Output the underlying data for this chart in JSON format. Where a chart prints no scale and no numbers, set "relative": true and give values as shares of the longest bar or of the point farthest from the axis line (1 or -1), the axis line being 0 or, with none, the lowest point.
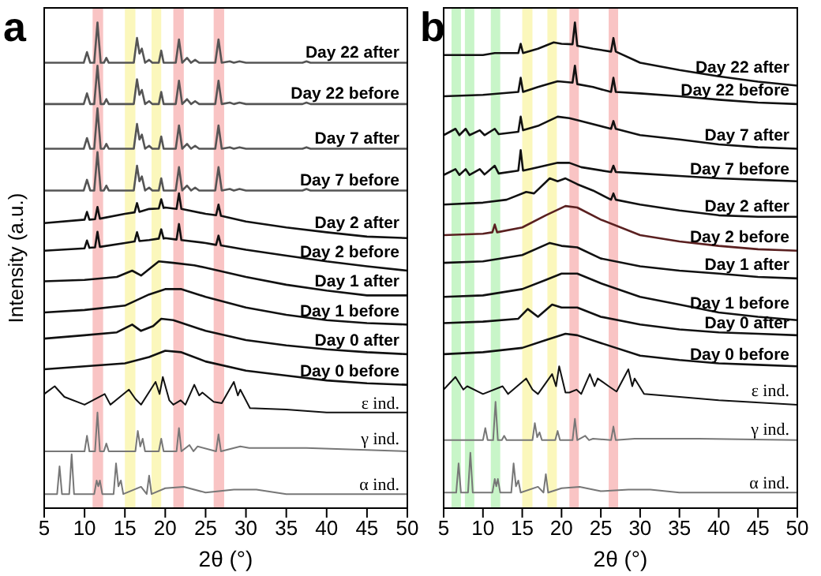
{
  "chart_data": [
    {
      "type": "line",
      "title": "a",
      "xlabel": "2θ (°)",
      "ylabel": "Intensity (a.u.)",
      "relative": true,
      "xlim": [
        5,
        50
      ],
      "xticks": [
        5,
        10,
        15,
        20,
        25,
        30,
        35,
        40,
        45,
        50
      ],
      "tick_labels": "x",
      "bands": [
        {
          "axis": "x",
          "from": 11,
          "to": 12.3,
          "color": "#f9c4c4"
        },
        {
          "axis": "x",
          "from": 15,
          "to": 16.3,
          "color": "#fbf7bc"
        },
        {
          "axis": "x",
          "from": 18.3,
          "to": 19.5,
          "color": "#fbf7bc"
        },
        {
          "axis": "x",
          "from": 21,
          "to": 22.3,
          "color": "#f9c4c4"
        },
        {
          "axis": "x",
          "from": 26,
          "to": 27.3,
          "color": "#f9c4c4"
        }
      ],
      "series": [
        {
          "name": "Day 22 after",
          "color": "#555555",
          "x": [
            5,
            9.9,
            10.3,
            10.7,
            11.2,
            11.6,
            12,
            12.4,
            12.7,
            13,
            16.1,
            16.5,
            16.8,
            17.1,
            17.5,
            18,
            18.4,
            19.2,
            19.5,
            19.8,
            21.3,
            21.7,
            22.1,
            22.7,
            23.2,
            23.7,
            24.2,
            26.2,
            26.6,
            27,
            28,
            28.5,
            29.2,
            30,
            37,
            37.5,
            38,
            50
          ],
          "values": [
            0.917,
            0.917,
            0.939,
            0.917,
            0.917,
            1.0,
            0.917,
            0.917,
            0.927,
            0.917,
            0.917,
            0.968,
            0.936,
            0.946,
            0.917,
            0.923,
            0.917,
            0.917,
            0.942,
            0.917,
            0.917,
            0.965,
            0.917,
            0.927,
            0.917,
            0.923,
            0.917,
            0.917,
            0.965,
            0.917,
            0.92,
            0.917,
            0.92,
            0.917,
            0.917,
            0.92,
            0.917,
            0.917
          ]
        },
        {
          "name": "Day 22 before",
          "color": "#555555",
          "x": [
            5,
            9.9,
            10.3,
            10.7,
            11.2,
            11.6,
            12,
            12.4,
            12.7,
            13,
            16.1,
            16.5,
            16.8,
            17.1,
            17.5,
            18,
            18.4,
            19.2,
            19.5,
            19.8,
            21.3,
            21.7,
            22.1,
            22.7,
            23.2,
            23.7,
            24.2,
            26.2,
            26.6,
            27,
            28,
            28.5,
            29.2,
            30,
            37,
            37.5,
            38,
            50
          ],
          "values": [
            0.832,
            0.832,
            0.854,
            0.832,
            0.832,
            0.911,
            0.832,
            0.832,
            0.842,
            0.832,
            0.832,
            0.883,
            0.851,
            0.861,
            0.832,
            0.838,
            0.832,
            0.832,
            0.857,
            0.832,
            0.832,
            0.88,
            0.832,
            0.842,
            0.832,
            0.838,
            0.832,
            0.832,
            0.88,
            0.832,
            0.835,
            0.832,
            0.835,
            0.832,
            0.832,
            0.835,
            0.832,
            0.832
          ]
        },
        {
          "name": "Day 7 after",
          "color": "#555555",
          "x": [
            5,
            9.9,
            10.3,
            10.7,
            11.2,
            11.6,
            12,
            12.4,
            12.7,
            13,
            16.1,
            16.5,
            16.8,
            17.1,
            17.5,
            18,
            18.4,
            19.2,
            19.5,
            19.8,
            21.3,
            21.7,
            22.1,
            22.7,
            23.2,
            23.7,
            24.2,
            26.2,
            26.6,
            27,
            28,
            28.5,
            29.2,
            30,
            37,
            37.5,
            38,
            50
          ],
          "values": [
            0.74,
            0.74,
            0.762,
            0.74,
            0.74,
            0.823,
            0.74,
            0.74,
            0.75,
            0.74,
            0.74,
            0.791,
            0.759,
            0.769,
            0.74,
            0.746,
            0.74,
            0.74,
            0.765,
            0.74,
            0.74,
            0.788,
            0.74,
            0.75,
            0.74,
            0.746,
            0.74,
            0.74,
            0.788,
            0.74,
            0.743,
            0.74,
            0.743,
            0.74,
            0.74,
            0.743,
            0.74,
            0.74
          ]
        },
        {
          "name": "Day 7 before",
          "color": "#555555",
          "x": [
            5,
            9.9,
            10.3,
            10.7,
            11.2,
            11.6,
            12,
            12.4,
            12.7,
            13,
            16.1,
            16.5,
            16.8,
            17.1,
            17.5,
            18,
            18.4,
            19.2,
            19.5,
            19.8,
            21.3,
            21.7,
            22.1,
            22.7,
            23.2,
            23.7,
            24.2,
            26.2,
            26.6,
            27,
            28,
            28.5,
            29.2,
            30,
            37,
            37.5,
            38,
            50
          ],
          "values": [
            0.654,
            0.654,
            0.676,
            0.654,
            0.654,
            0.733,
            0.654,
            0.654,
            0.664,
            0.654,
            0.654,
            0.705,
            0.673,
            0.683,
            0.654,
            0.66,
            0.654,
            0.654,
            0.679,
            0.654,
            0.654,
            0.702,
            0.654,
            0.664,
            0.654,
            0.66,
            0.654,
            0.654,
            0.702,
            0.654,
            0.657,
            0.654,
            0.657,
            0.654,
            0.654,
            0.657,
            0.654,
            0.654
          ]
        },
        {
          "name": "Day 2 after",
          "color": "#111111",
          "x": [
            5,
            10,
            10.3,
            10.6,
            11.3,
            11.6,
            11.9,
            15,
            16.2,
            16.5,
            16.8,
            18,
            19.2,
            19.5,
            19.8,
            20,
            21.4,
            21.7,
            22,
            25,
            26.3,
            26.6,
            26.9,
            30,
            35,
            40,
            45,
            50
          ],
          "values": [
            0.587,
            0.594,
            0.61,
            0.594,
            0.595,
            0.62,
            0.596,
            0.606,
            0.609,
            0.628,
            0.61,
            0.616,
            0.617,
            0.636,
            0.618,
            0.619,
            0.616,
            0.648,
            0.616,
            0.606,
            0.603,
            0.625,
            0.602,
            0.59,
            0.578,
            0.568,
            0.559,
            0.556
          ]
        },
        {
          "name": "Day 2 before",
          "color": "#111111",
          "x": [
            5,
            10,
            10.3,
            10.6,
            11.3,
            11.6,
            11.9,
            15,
            16.2,
            16.5,
            16.8,
            18,
            19.2,
            19.5,
            19.8,
            20,
            21.4,
            21.7,
            22,
            25,
            26.3,
            26.6,
            26.9,
            30,
            35,
            40,
            45,
            50
          ],
          "values": [
            0.53,
            0.535,
            0.551,
            0.536,
            0.537,
            0.569,
            0.538,
            0.546,
            0.549,
            0.568,
            0.55,
            0.552,
            0.555,
            0.574,
            0.555,
            0.556,
            0.553,
            0.585,
            0.552,
            0.546,
            0.542,
            0.561,
            0.541,
            0.532,
            0.52,
            0.508,
            0.498,
            0.489
          ]
        },
        {
          "name": "Day 1 after",
          "color": "#111111",
          "x": [
            5,
            10,
            14,
            15.9,
            17,
            19.2,
            21,
            23.6,
            25,
            30,
            35,
            40,
            45,
            50
          ],
          "values": [
            0.467,
            0.47,
            0.476,
            0.489,
            0.479,
            0.508,
            0.505,
            0.5,
            0.495,
            0.476,
            0.46,
            0.448,
            0.438,
            0.438
          ]
        },
        {
          "name": "Day 1 before",
          "color": "#111111",
          "x": [
            5,
            10,
            15,
            18,
            20,
            22,
            25,
            30,
            35,
            40,
            45,
            50
          ],
          "values": [
            0.403,
            0.408,
            0.417,
            0.44,
            0.451,
            0.451,
            0.435,
            0.413,
            0.398,
            0.387,
            0.381,
            0.378
          ]
        },
        {
          "name": "Day 0 after",
          "color": "#111111",
          "x": [
            5,
            10,
            14,
            15.9,
            17,
            18.5,
            19.5,
            21,
            25,
            30,
            35,
            40,
            45,
            50
          ],
          "values": [
            0.349,
            0.356,
            0.362,
            0.378,
            0.365,
            0.375,
            0.39,
            0.387,
            0.365,
            0.346,
            0.335,
            0.327,
            0.321,
            0.317
          ]
        },
        {
          "name": "Day 0 before",
          "color": "#111111",
          "x": [
            5,
            10,
            15,
            18,
            20,
            22,
            25,
            30,
            35,
            40,
            45,
            50
          ],
          "values": [
            0.286,
            0.292,
            0.298,
            0.311,
            0.324,
            0.321,
            0.302,
            0.283,
            0.273,
            0.263,
            0.257,
            0.254
          ]
        },
        {
          "name": "ε ind.",
          "color": "#111111",
          "x": [
            5,
            6.3,
            7.5,
            10,
            12.5,
            13.2,
            15.5,
            16.3,
            17,
            18.8,
            19.3,
            19.7,
            20.5,
            21,
            21.9,
            22.5,
            23.6,
            24.2,
            24.6,
            26,
            27,
            28.5,
            29,
            29.3,
            30.5,
            35,
            40,
            50
          ],
          "values": [
            0.235,
            0.251,
            0.229,
            0.213,
            0.235,
            0.213,
            0.244,
            0.225,
            0.213,
            0.26,
            0.235,
            0.27,
            0.222,
            0.213,
            0.222,
            0.213,
            0.254,
            0.232,
            0.238,
            0.219,
            0.216,
            0.26,
            0.232,
            0.244,
            0.206,
            0.203,
            0.197,
            0.197
          ]
        },
        {
          "name": "γ ind.",
          "color": "#777777",
          "x": [
            5,
            10,
            10.3,
            10.6,
            11.3,
            11.6,
            11.9,
            12.4,
            12.7,
            13,
            16.3,
            16.6,
            16.9,
            17.2,
            17.5,
            19.2,
            19.5,
            19.8,
            21.4,
            21.7,
            22,
            23,
            23.5,
            24,
            26.3,
            26.6,
            26.9,
            29.3,
            30.4,
            37.5,
            50
          ],
          "values": [
            0.117,
            0.117,
            0.149,
            0.117,
            0.117,
            0.197,
            0.117,
            0.117,
            0.133,
            0.117,
            0.117,
            0.159,
            0.127,
            0.143,
            0.117,
            0.117,
            0.143,
            0.117,
            0.117,
            0.165,
            0.117,
            0.13,
            0.117,
            0.127,
            0.117,
            0.152,
            0.117,
            0.127,
            0.124,
            0.124,
            0.117
          ]
        },
        {
          "name": "α ind.",
          "color": "#777777",
          "x": [
            5,
            6.6,
            6.9,
            7.2,
            8.1,
            8.4,
            8.7,
            11.2,
            11.5,
            11.7,
            11.9,
            12.2,
            13.6,
            13.9,
            14.2,
            14.5,
            14.8,
            17,
            17.7,
            18,
            18.3,
            20,
            22.3,
            25,
            28.5,
            31.3,
            35,
            50
          ],
          "values": [
            0.029,
            0.029,
            0.086,
            0.029,
            0.029,
            0.111,
            0.029,
            0.029,
            0.057,
            0.045,
            0.057,
            0.029,
            0.029,
            0.092,
            0.045,
            0.057,
            0.029,
            0.044,
            0.029,
            0.067,
            0.029,
            0.041,
            0.044,
            0.032,
            0.038,
            0.038,
            0.029,
            0.029
          ]
        }
      ]
    },
    {
      "type": "line",
      "title": "b",
      "xlabel": "2θ (°)",
      "relative": true,
      "xlim": [
        5,
        50
      ],
      "xticks": [
        5,
        10,
        15,
        20,
        25,
        30,
        35,
        40,
        45,
        50
      ],
      "tick_labels": "x",
      "bands": [
        {
          "axis": "x",
          "from": 6,
          "to": 7.2,
          "color": "#c8f5c8"
        },
        {
          "axis": "x",
          "from": 7.7,
          "to": 8.9,
          "color": "#c8f5c8"
        },
        {
          "axis": "x",
          "from": 11,
          "to": 12.2,
          "color": "#c8f5c8"
        },
        {
          "axis": "x",
          "from": 15,
          "to": 16.3,
          "color": "#fbf7bc"
        },
        {
          "axis": "x",
          "from": 18.2,
          "to": 19.4,
          "color": "#fbf7bc"
        },
        {
          "axis": "x",
          "from": 21,
          "to": 22.2,
          "color": "#f9c4c4"
        },
        {
          "axis": "x",
          "from": 26,
          "to": 27.2,
          "color": "#f9c4c4"
        }
      ],
      "series": [
        {
          "name": "Day 22 after",
          "color": "#111111",
          "x": [
            5,
            10,
            11.5,
            14.5,
            14.8,
            15.1,
            17,
            19,
            20,
            21.4,
            21.7,
            22,
            24,
            26.3,
            26.6,
            26.9,
            30,
            35,
            40,
            45,
            50
          ],
          "values": [
            0.933,
            0.933,
            0.937,
            0.937,
            0.956,
            0.937,
            0.946,
            0.959,
            0.956,
            0.955,
            1.0,
            0.952,
            0.946,
            0.94,
            0.968,
            0.94,
            0.917,
            0.902,
            0.889,
            0.878,
            0.87
          ]
        },
        {
          "name": "Day 22 before",
          "color": "#111111",
          "x": [
            5,
            10,
            14.5,
            14.8,
            15.1,
            17,
            19.5,
            21.4,
            21.7,
            22,
            24,
            26.3,
            26.6,
            26.9,
            30,
            35,
            40,
            45,
            50
          ],
          "values": [
            0.848,
            0.851,
            0.857,
            0.886,
            0.857,
            0.867,
            0.879,
            0.876,
            0.911,
            0.873,
            0.867,
            0.857,
            0.886,
            0.857,
            0.854,
            0.848,
            0.841,
            0.835,
            0.832
          ]
        },
        {
          "name": "Day 7 after",
          "color": "#111111",
          "x": [
            5,
            6.5,
            7,
            7.8,
            8.3,
            9.6,
            10.2,
            11.5,
            12,
            14.5,
            14.8,
            15.1,
            17,
            19.5,
            21,
            22.5,
            26.3,
            26.6,
            26.9,
            30,
            35,
            40,
            45,
            50
          ],
          "values": [
            0.768,
            0.781,
            0.768,
            0.781,
            0.768,
            0.778,
            0.768,
            0.781,
            0.77,
            0.775,
            0.806,
            0.778,
            0.787,
            0.806,
            0.803,
            0.797,
            0.781,
            0.797,
            0.781,
            0.768,
            0.759,
            0.749,
            0.743,
            0.74
          ]
        },
        {
          "name": "Day 7 before",
          "color": "#111111",
          "x": [
            5,
            6.5,
            7,
            7.8,
            8.3,
            9.6,
            10.2,
            11.5,
            12,
            14.5,
            14.8,
            15.1,
            17,
            19.5,
            21,
            22.5,
            26.3,
            26.6,
            26.9,
            30,
            35,
            40,
            45,
            50
          ],
          "values": [
            0.686,
            0.698,
            0.686,
            0.698,
            0.686,
            0.698,
            0.687,
            0.705,
            0.689,
            0.695,
            0.737,
            0.695,
            0.702,
            0.711,
            0.711,
            0.702,
            0.692,
            0.705,
            0.692,
            0.689,
            0.684,
            0.679,
            0.676,
            0.673
          ]
        },
        {
          "name": "Day 2 after",
          "color": "#111111",
          "x": [
            5,
            10,
            13,
            15.5,
            16.5,
            18.5,
            19.5,
            20.5,
            22,
            24,
            26.3,
            26.6,
            26.9,
            30,
            35,
            40,
            45,
            50
          ],
          "values": [
            0.625,
            0.629,
            0.635,
            0.651,
            0.648,
            0.679,
            0.673,
            0.679,
            0.667,
            0.654,
            0.635,
            0.648,
            0.635,
            0.625,
            0.613,
            0.603,
            0.6,
            0.6
          ]
        },
        {
          "name": "Day 2 before",
          "color": "#5a2020",
          "x": [
            5,
            10,
            11.2,
            11.5,
            11.8,
            15,
            18,
            20.5,
            22,
            25,
            30,
            35,
            40,
            45,
            50
          ],
          "values": [
            0.562,
            0.565,
            0.568,
            0.584,
            0.568,
            0.578,
            0.603,
            0.622,
            0.619,
            0.594,
            0.562,
            0.549,
            0.54,
            0.533,
            0.53
          ]
        },
        {
          "name": "Day 1 after",
          "color": "#111111",
          "x": [
            5,
            10,
            15,
            18.5,
            20,
            22,
            25,
            30,
            35,
            40,
            45,
            50
          ],
          "values": [
            0.505,
            0.508,
            0.521,
            0.546,
            0.54,
            0.537,
            0.514,
            0.498,
            0.489,
            0.483,
            0.476,
            0.473
          ]
        },
        {
          "name": "Day 1 before",
          "color": "#111111",
          "x": [
            5,
            10,
            15,
            18,
            20,
            22,
            25,
            30,
            35,
            40,
            45,
            50
          ],
          "values": [
            0.435,
            0.438,
            0.451,
            0.47,
            0.483,
            0.483,
            0.463,
            0.435,
            0.419,
            0.403,
            0.394,
            0.387
          ]
        },
        {
          "name": "Day 0 after",
          "color": "#111111",
          "x": [
            5,
            10,
            14.5,
            15.7,
            17,
            18.8,
            20,
            22,
            25,
            30,
            35,
            40,
            45,
            50
          ],
          "values": [
            0.381,
            0.384,
            0.39,
            0.41,
            0.394,
            0.419,
            0.413,
            0.413,
            0.394,
            0.378,
            0.368,
            0.362,
            0.359,
            0.356
          ]
        },
        {
          "name": "Day 0 before",
          "color": "#111111",
          "x": [
            5,
            10,
            15,
            18,
            20.5,
            22,
            25,
            30,
            35,
            40,
            45,
            50
          ],
          "values": [
            0.317,
            0.321,
            0.33,
            0.346,
            0.359,
            0.356,
            0.34,
            0.314,
            0.305,
            0.298,
            0.295,
            0.292
          ]
        },
        {
          "name": "ε ind.",
          "color": "#111111",
          "x": [
            5,
            6.5,
            7.5,
            8,
            10,
            12.5,
            13.2,
            15.5,
            16.3,
            17,
            18.8,
            19.3,
            19.7,
            20.5,
            21,
            21.9,
            22.5,
            23.6,
            24.2,
            24.6,
            26,
            27,
            28.5,
            29,
            29.3,
            30.5,
            35,
            40,
            50
          ],
          "values": [
            0.244,
            0.27,
            0.244,
            0.251,
            0.235,
            0.251,
            0.235,
            0.267,
            0.244,
            0.235,
            0.276,
            0.251,
            0.292,
            0.238,
            0.238,
            0.244,
            0.235,
            0.276,
            0.251,
            0.267,
            0.251,
            0.24,
            0.286,
            0.251,
            0.267,
            0.235,
            0.229,
            0.222,
            0.213
          ]
        },
        {
          "name": "γ ind.",
          "color": "#777777",
          "x": [
            5,
            10,
            10.3,
            10.6,
            11.3,
            11.6,
            11.9,
            12.4,
            12.7,
            13,
            16.3,
            16.6,
            16.9,
            17.2,
            17.5,
            19.2,
            19.5,
            19.8,
            21.4,
            21.7,
            22,
            23,
            23.5,
            24,
            26.3,
            26.6,
            26.9,
            29.3,
            30.4,
            37.5,
            50
          ],
          "values": [
            0.14,
            0.14,
            0.165,
            0.14,
            0.14,
            0.219,
            0.14,
            0.14,
            0.149,
            0.14,
            0.14,
            0.175,
            0.146,
            0.156,
            0.14,
            0.14,
            0.159,
            0.14,
            0.14,
            0.184,
            0.14,
            0.149,
            0.14,
            0.143,
            0.14,
            0.168,
            0.14,
            0.143,
            0.143,
            0.143,
            0.14
          ]
        },
        {
          "name": "α ind.",
          "color": "#777777",
          "x": [
            5,
            6.6,
            6.9,
            7.2,
            8.1,
            8.4,
            8.7,
            11.2,
            11.5,
            11.7,
            11.9,
            12.2,
            13.6,
            13.9,
            14.2,
            14.5,
            14.8,
            17,
            17.7,
            18,
            18.3,
            20,
            22.3,
            25,
            28.5,
            31.3,
            35,
            50
          ],
          "values": [
            0.032,
            0.032,
            0.092,
            0.032,
            0.032,
            0.114,
            0.032,
            0.032,
            0.06,
            0.045,
            0.06,
            0.032,
            0.032,
            0.092,
            0.045,
            0.057,
            0.032,
            0.044,
            0.032,
            0.07,
            0.032,
            0.041,
            0.044,
            0.035,
            0.038,
            0.038,
            0.032,
            0.032
          ]
        }
      ]
    }
  ]
}
